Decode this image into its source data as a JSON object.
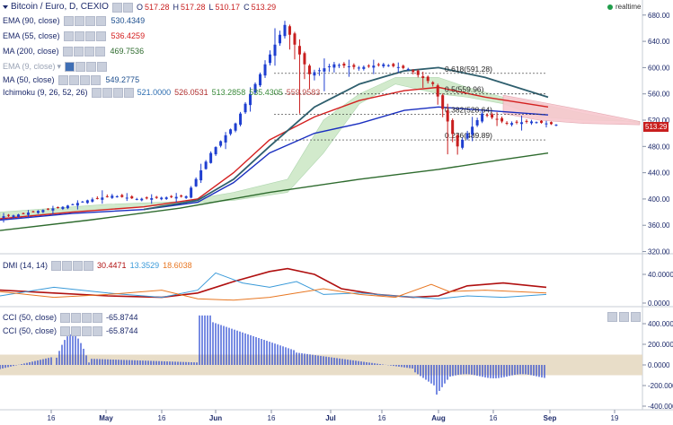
{
  "header": {
    "symbol": "Bitcoin / Euro, D, CEXIO",
    "open_label": "O",
    "open": "517.28",
    "high_label": "H",
    "high": "517.28",
    "low_label": "L",
    "low": "510.17",
    "close_label": "C",
    "close": "513.29",
    "realtime": "realtime"
  },
  "indicators": [
    {
      "name": "EMA (90, close)",
      "value": "530.4349",
      "color": "#1d4f8f",
      "dim": false
    },
    {
      "name": "EMA (55, close)",
      "value": "536.4259",
      "color": "#d42020",
      "dim": false
    },
    {
      "name": "MA (200, close)",
      "value": "469.7536",
      "color": "#2e6b2e",
      "dim": false
    },
    {
      "name": "EMA (9, close)",
      "value": "",
      "color": "#9aa3b5",
      "dim": true
    },
    {
      "name": "MA (50, close)",
      "value": "549.2775",
      "color": "#1d4f8f",
      "dim": false
    }
  ],
  "ichimoku": {
    "name": "Ichimoku (9, 26, 52, 26)",
    "values": [
      {
        "v": "521.0000",
        "color": "#2b6cb0"
      },
      {
        "v": "526.0531",
        "color": "#b03030"
      },
      {
        "v": "513.2858",
        "color": "#3a8a3a"
      },
      {
        "v": "535.4305",
        "color": "#3a8a3a"
      },
      {
        "v": "559.9583",
        "color": "#c0504d"
      }
    ]
  },
  "dmi": {
    "name": "DMI (14, 14)",
    "values": [
      {
        "v": "30.4471",
        "color": "#b01010"
      },
      {
        "v": "13.3529",
        "color": "#3a9ad9"
      },
      {
        "v": "18.6038",
        "color": "#e87722"
      }
    ],
    "ticks": [
      "40.0000",
      "0.0000"
    ]
  },
  "cci": {
    "rows": [
      {
        "name": "CCI (50, close)",
        "value": "-65.8744"
      },
      {
        "name": "CCI (50, close)",
        "value": "-65.8744"
      }
    ],
    "ticks": [
      "400.0000",
      "200.0000",
      "0.0000",
      "-200.0000",
      "-400.0000"
    ]
  },
  "fib": [
    "0.618(591.28)",
    "0.5(559.96)",
    "0.382(528.64)",
    "0.236(489.89)"
  ],
  "price_tag": "513.29",
  "colors": {
    "up": "#1f3fd0",
    "down": "#c81e1e",
    "cloud_up": "#c8e6c0",
    "cloud_down": "#f8c8cf"
  },
  "chart_data": {
    "type": "candlestick",
    "y_ticks": [
      "680.00",
      "640.00",
      "600.00",
      "560.00",
      "520.00",
      "480.00",
      "440.00",
      "400.00",
      "360.00",
      "320.00"
    ],
    "ylim": [
      318,
      692
    ],
    "x_ticks": [
      "16",
      "May",
      "16",
      "Jun",
      "16",
      "Jul",
      "16",
      "Aug",
      "16",
      "Sep",
      "19"
    ],
    "ohlc_weekly_approx": [
      {
        "t": "Apr-01",
        "o": 372,
        "h": 380,
        "l": 365,
        "c": 375
      },
      {
        "t": "Apr-08",
        "o": 375,
        "h": 386,
        "l": 370,
        "c": 382
      },
      {
        "t": "Apr-15",
        "o": 382,
        "h": 392,
        "l": 376,
        "c": 388
      },
      {
        "t": "Apr-22",
        "o": 388,
        "h": 402,
        "l": 382,
        "c": 398
      },
      {
        "t": "Apr-29",
        "o": 398,
        "h": 416,
        "l": 392,
        "c": 405
      },
      {
        "t": "May-06",
        "o": 405,
        "h": 412,
        "l": 396,
        "c": 400
      },
      {
        "t": "May-13",
        "o": 400,
        "h": 408,
        "l": 394,
        "c": 402
      },
      {
        "t": "May-20",
        "o": 402,
        "h": 410,
        "l": 396,
        "c": 404
      },
      {
        "t": "May-27",
        "o": 404,
        "h": 480,
        "l": 400,
        "c": 470
      },
      {
        "t": "Jun-03",
        "o": 470,
        "h": 520,
        "l": 460,
        "c": 515
      },
      {
        "t": "Jun-10",
        "o": 515,
        "h": 600,
        "l": 505,
        "c": 590
      },
      {
        "t": "Jun-17",
        "o": 590,
        "h": 690,
        "l": 575,
        "c": 665
      },
      {
        "t": "Jun-24",
        "o": 665,
        "h": 675,
        "l": 500,
        "c": 590
      },
      {
        "t": "Jul-01",
        "o": 590,
        "h": 620,
        "l": 560,
        "c": 605
      },
      {
        "t": "Jul-08",
        "o": 605,
        "h": 615,
        "l": 585,
        "c": 600
      },
      {
        "t": "Jul-15",
        "o": 600,
        "h": 614,
        "l": 590,
        "c": 605
      },
      {
        "t": "Jul-22",
        "o": 605,
        "h": 612,
        "l": 590,
        "c": 598
      },
      {
        "t": "Jul-29",
        "o": 598,
        "h": 605,
        "l": 560,
        "c": 575
      },
      {
        "t": "Aug-02",
        "o": 575,
        "h": 585,
        "l": 430,
        "c": 480
      },
      {
        "t": "Aug-09",
        "o": 480,
        "h": 545,
        "l": 470,
        "c": 530
      },
      {
        "t": "Aug-16",
        "o": 530,
        "h": 540,
        "l": 505,
        "c": 515
      },
      {
        "t": "Aug-23",
        "o": 515,
        "h": 528,
        "l": 505,
        "c": 518
      },
      {
        "t": "Aug-30",
        "o": 518,
        "h": 522,
        "l": 508,
        "c": 513
      }
    ]
  }
}
